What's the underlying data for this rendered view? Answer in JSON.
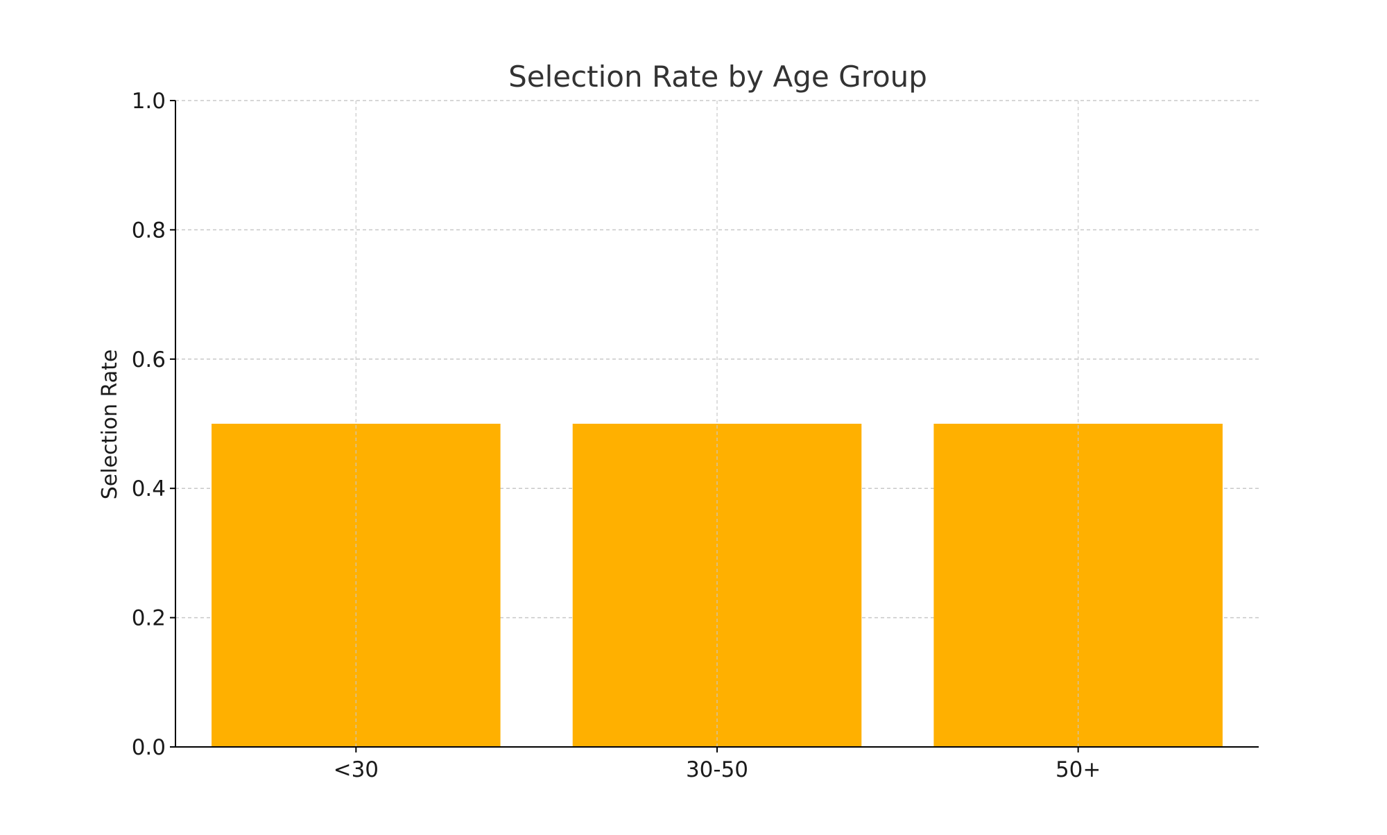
{
  "chart_data": {
    "type": "bar",
    "title": "Selection Rate by Age Group",
    "xlabel": "",
    "ylabel": "Selection Rate",
    "categories": [
      "<30",
      "30-50",
      "50+"
    ],
    "values": [
      0.5,
      0.5,
      0.5
    ],
    "ylim": [
      0,
      1.0
    ],
    "yticks": [
      0.0,
      0.2,
      0.4,
      0.6,
      0.8,
      1.0
    ],
    "ytick_labels": [
      "0.0",
      "0.2",
      "0.4",
      "0.6",
      "0.8",
      "1.0"
    ],
    "grid": true,
    "bar_color": "#FFB000",
    "text_color": "#333333",
    "grid_color": "#c8c8c8"
  }
}
